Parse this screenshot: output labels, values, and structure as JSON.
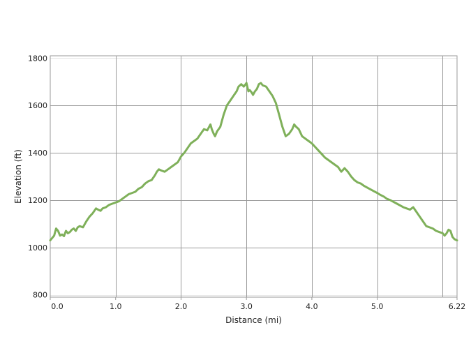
{
  "chart_data": {
    "type": "line",
    "title": "",
    "xlabel": "Distance (mi)",
    "ylabel": "Elevation (ft)",
    "xlim": [
      0,
      6.22
    ],
    "ylim": [
      790,
      1810
    ],
    "x_ticks": [
      0,
      1,
      2,
      3,
      4,
      5,
      6.22
    ],
    "x_tick_labels": [
      "0.0",
      "1.0",
      "2.0",
      "3.0",
      "4.0",
      "5.0",
      "6.22"
    ],
    "y_ticks": [
      800,
      1000,
      1200,
      1400,
      1600,
      1800
    ],
    "y_tick_labels": [
      "800",
      "1000",
      "1200",
      "1400",
      "1600",
      "1800"
    ],
    "x_grid_lines": [
      1,
      2,
      3,
      4,
      5,
      6
    ],
    "grid": true,
    "legend": "none",
    "line_color": "#7fb05a",
    "series": [
      {
        "x": [
          0,
          0.03,
          0.06,
          0.09,
          0.12,
          0.15,
          0.18,
          0.21,
          0.24,
          0.27,
          0.3,
          0.33,
          0.36,
          0.39,
          0.42,
          0.45,
          0.5,
          0.55,
          0.6,
          0.65,
          0.7,
          0.73,
          0.77,
          0.8,
          0.85,
          0.9,
          0.95,
          1.0,
          1.05,
          1.1,
          1.15,
          1.2,
          1.3,
          1.35,
          1.4,
          1.45,
          1.5,
          1.55,
          1.6,
          1.63,
          1.66,
          1.7,
          1.75,
          1.8,
          1.85,
          1.9,
          1.95,
          2.0,
          2.05,
          2.1,
          2.15,
          2.2,
          2.25,
          2.3,
          2.35,
          2.4,
          2.45,
          2.47,
          2.5,
          2.52,
          2.55,
          2.6,
          2.65,
          2.7,
          2.75,
          2.8,
          2.85,
          2.88,
          2.92,
          2.96,
          3.0,
          3.03,
          3.05,
          3.08,
          3.1,
          3.13,
          3.16,
          3.19,
          3.22,
          3.25,
          3.3,
          3.35,
          3.4,
          3.45,
          3.5,
          3.55,
          3.6,
          3.65,
          3.7,
          3.73,
          3.76,
          3.8,
          3.85,
          3.9,
          3.95,
          4.0,
          4.05,
          4.1,
          4.15,
          4.2,
          4.3,
          4.4,
          4.45,
          4.5,
          4.55,
          4.6,
          4.65,
          4.7,
          4.75,
          4.8,
          4.9,
          5.0,
          5.05,
          5.1,
          5.15,
          5.2,
          5.3,
          5.4,
          5.45,
          5.5,
          5.55,
          5.6,
          5.65,
          5.7,
          5.75,
          5.8,
          5.85,
          5.9,
          5.95,
          6.0,
          6.03,
          6.06,
          6.09,
          6.12,
          6.15,
          6.18,
          6.22
        ],
        "y": [
          1030,
          1040,
          1050,
          1080,
          1070,
          1050,
          1055,
          1048,
          1070,
          1060,
          1065,
          1075,
          1080,
          1070,
          1085,
          1090,
          1085,
          1110,
          1130,
          1145,
          1165,
          1160,
          1155,
          1165,
          1170,
          1180,
          1185,
          1190,
          1195,
          1205,
          1215,
          1225,
          1235,
          1248,
          1255,
          1270,
          1280,
          1285,
          1305,
          1320,
          1330,
          1325,
          1320,
          1330,
          1340,
          1350,
          1360,
          1385,
          1400,
          1420,
          1440,
          1450,
          1460,
          1480,
          1500,
          1495,
          1520,
          1500,
          1480,
          1470,
          1490,
          1510,
          1560,
          1600,
          1620,
          1640,
          1660,
          1680,
          1690,
          1680,
          1695,
          1660,
          1665,
          1655,
          1645,
          1660,
          1670,
          1690,
          1695,
          1685,
          1680,
          1660,
          1640,
          1610,
          1560,
          1510,
          1470,
          1480,
          1500,
          1520,
          1510,
          1500,
          1470,
          1460,
          1450,
          1440,
          1425,
          1410,
          1395,
          1380,
          1360,
          1340,
          1320,
          1335,
          1320,
          1300,
          1285,
          1275,
          1270,
          1260,
          1245,
          1230,
          1222,
          1215,
          1205,
          1200,
          1185,
          1170,
          1165,
          1160,
          1170,
          1150,
          1130,
          1110,
          1090,
          1085,
          1080,
          1070,
          1065,
          1060,
          1050,
          1060,
          1075,
          1070,
          1045,
          1035,
          1030
        ]
      }
    ]
  }
}
